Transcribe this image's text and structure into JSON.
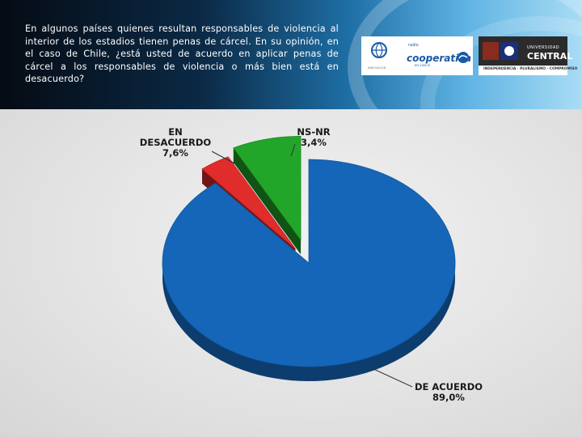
{
  "question": "En algunos países quienes resultan responsables de violencia al interior de los estadios tienen penas de cárcel. En su opinión, en el caso de Chile, ¿está usted de acuerdo en aplicar penas de cárcel a los responsables de violencia o más bien está en desacuerdo?",
  "logos": {
    "cooperativa": {
      "sup": "radio",
      "name": "cooperativa",
      "tag": "en vivo.cl",
      "innovation": "INNOVACIÓN"
    },
    "universidad": {
      "line1": "UNIVERSIDAD",
      "line2": "CENTRAL",
      "tagline": "INDEPENDENCIA · PLURALISMO · COMPROMISO"
    }
  },
  "chart_data": {
    "type": "pie",
    "title": "",
    "slices": [
      {
        "label_line1": "DE ACUERDO",
        "label_line2": "",
        "value": 89.0,
        "display": "89,0%",
        "color": "#1566b8"
      },
      {
        "label_line1": "NS-NR",
        "label_line2": "",
        "value": 3.4,
        "display": "3,4%",
        "color": "#e12c2c"
      },
      {
        "label_line1": "EN",
        "label_line2": "DESACUERDO",
        "value": 7.6,
        "display": "7,6%",
        "color": "#22a62a"
      }
    ]
  }
}
